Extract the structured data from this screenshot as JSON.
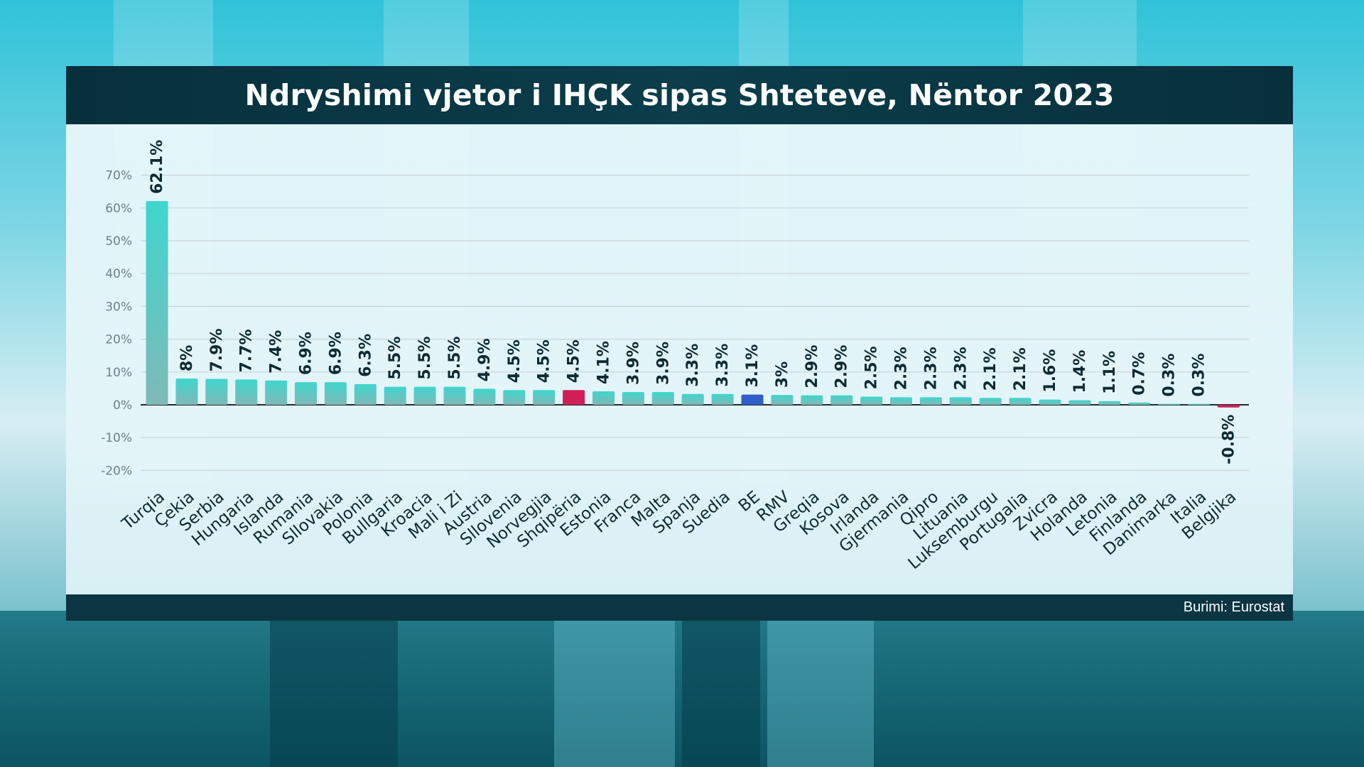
{
  "title": "Ndryshimi vjetor i IHÇK sipas Shteteve, Nëntor 2023",
  "source": "Burimi: Eurostat",
  "colors": {
    "bar_default": "#3cc9c2",
    "bar_highlight_albania": "#d01f57",
    "bar_highlight_eu": "#2f5fc8",
    "title_bar": "#0b3d4a",
    "label_text": "#0e2a33"
  },
  "chart_data": {
    "type": "bar",
    "title": "Ndryshimi vjetor i IHÇK sipas Shteteve, Nëntor 2023",
    "xlabel": "",
    "ylabel": "",
    "ylim": [
      -20,
      70
    ],
    "yticks": [
      -20,
      -10,
      0,
      10,
      20,
      30,
      40,
      50,
      60,
      70
    ],
    "ytick_labels": [
      "-20%",
      "-10%",
      "0%",
      "10%",
      "20%",
      "30%",
      "40%",
      "50%",
      "60%",
      "70%"
    ],
    "grid": true,
    "categories": [
      "Turqia",
      "Çekia",
      "Serbia",
      "Hungaria",
      "Islanda",
      "Rumania",
      "Sllovakia",
      "Polonia",
      "Bullgaria",
      "Kroacia",
      "Mali i Zi",
      "Austria",
      "Sllovenia",
      "Norvegjia",
      "Shqipëria",
      "Estonia",
      "Franca",
      "Malta",
      "Spanja",
      "Suedia",
      "BE",
      "RMV",
      "Greqia",
      "Kosova",
      "Irlanda",
      "Gjermania",
      "Qipro",
      "Lituania",
      "Luksemburgu",
      "Portugalia",
      "Zvicra",
      "Holanda",
      "Letonia",
      "Finlanda",
      "Danimarka",
      "Italia",
      "Belgjika"
    ],
    "values": [
      62.1,
      8,
      7.9,
      7.7,
      7.4,
      6.9,
      6.9,
      6.3,
      5.5,
      5.5,
      5.5,
      4.9,
      4.5,
      4.5,
      4.5,
      4.1,
      3.9,
      3.9,
      3.3,
      3.3,
      3.1,
      3,
      2.9,
      2.9,
      2.5,
      2.3,
      2.3,
      2.3,
      2.1,
      2.1,
      1.6,
      1.4,
      1.1,
      0.7,
      0.3,
      0.3,
      -0.8
    ],
    "value_labels": [
      "62.1%",
      "8%",
      "7.9%",
      "7.7%",
      "7.4%",
      "6.9%",
      "6.9%",
      "6.3%",
      "5.5%",
      "5.5%",
      "5.5%",
      "4.9%",
      "4.5%",
      "4.5%",
      "4.5%",
      "4.1%",
      "3.9%",
      "3.9%",
      "3.3%",
      "3.3%",
      "3.1%",
      "3%",
      "2.9%",
      "2.9%",
      "2.5%",
      "2.3%",
      "2.3%",
      "2.3%",
      "2.1%",
      "2.1%",
      "1.6%",
      "1.4%",
      "1.1%",
      "0.7%",
      "0.3%",
      "0.3%",
      "-0.8%"
    ],
    "highlights": {
      "Shqipëria": "#d01f57",
      "BE": "#2f5fc8",
      "Belgjika": "#d01f57"
    }
  }
}
